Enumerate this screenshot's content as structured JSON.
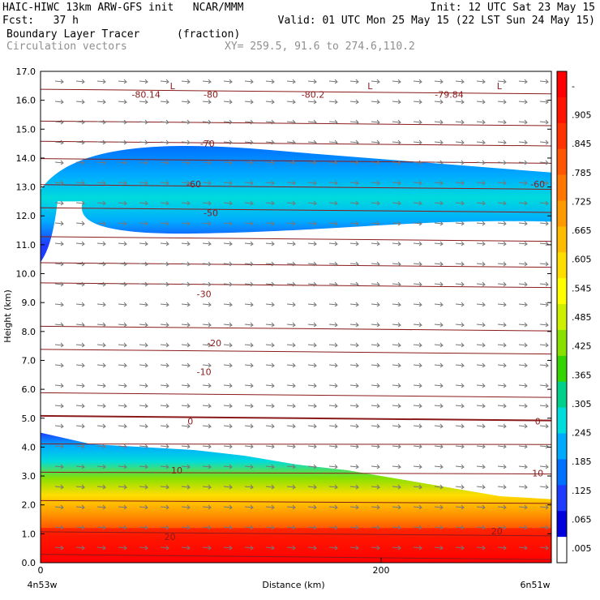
{
  "header": {
    "line1_left": "HAIC-HIWC 13km ARW-GFS init   NCAR/MMM",
    "line1_right": "Init: 12 UTC Sat 23 May 15",
    "line2_left": "Fcst:   37 h",
    "line2_right": "Valid: 01 UTC Mon 25 May 15 (22 LST Sun 24 May 15)",
    "line3_left": "Boundary Layer Tracer",
    "line3_units": "(fraction)",
    "line4_left": "Circulation vectors",
    "line4_xy": "XY= 259.5, 91.6 to 274.6,110.2"
  },
  "chart_data": {
    "type": "heatmap",
    "xlabel": "Distance (km)",
    "ylabel": "Height (km)",
    "xlim": [
      0,
      300
    ],
    "ylim": [
      0,
      17
    ],
    "yticks": [
      "0.0",
      "1.0",
      "2.0",
      "3.0",
      "4.0",
      "5.0",
      "6.0",
      "7.0",
      "8.0",
      "9.0",
      "10.0",
      "11.0",
      "12.0",
      "13.0",
      "14.0",
      "15.0",
      "16.0",
      "17.0"
    ],
    "xticks": [
      {
        "value": 0,
        "label": "0"
      },
      {
        "value": 200,
        "label": "200"
      }
    ],
    "x_end_labels": {
      "left": "4n53w",
      "right": "6n51w"
    },
    "colorbar": {
      "labels": [
        "-",
        ".905",
        ".845",
        ".785",
        ".725",
        ".665",
        ".605",
        ".545",
        ".485",
        ".425",
        ".365",
        ".305",
        ".245",
        ".185",
        ".125",
        ".065",
        ".005"
      ],
      "colors": [
        "#ff0000",
        "#ff1400",
        "#ff3300",
        "#ff5500",
        "#ff7700",
        "#ff9900",
        "#ffbb00",
        "#ffdd00",
        "#ffff00",
        "#ccf000",
        "#88e000",
        "#33d400",
        "#00d08a",
        "#00dcdc",
        "#00aaff",
        "#0070ff",
        "#1e3cff",
        "#0000dd",
        "#ffffff"
      ]
    },
    "temperature_contours": [
      {
        "label": "-80.14"
      },
      {
        "label": "-80"
      },
      {
        "label": "-80.2"
      },
      {
        "label": "-79.84"
      },
      {
        "label": "-70"
      },
      {
        "label": "-60"
      },
      {
        "label": "-50"
      },
      {
        "label": "-30"
      },
      {
        "label": "-20"
      },
      {
        "label": "-10"
      },
      {
        "label": "0"
      },
      {
        "label": "10"
      },
      {
        "label": "20"
      }
    ],
    "low_markers": [
      "L",
      "L",
      "L"
    ],
    "tracer_layers": [
      {
        "name": "boundary",
        "top_km": [
          4.5,
          4.1,
          4.0,
          3.9,
          3.7,
          3.4,
          3.2,
          2.9,
          2.6,
          2.3,
          2.2
        ]
      },
      {
        "name": "upper_outflow",
        "bottom_km": 11.4,
        "top_km": 14.5
      }
    ]
  }
}
